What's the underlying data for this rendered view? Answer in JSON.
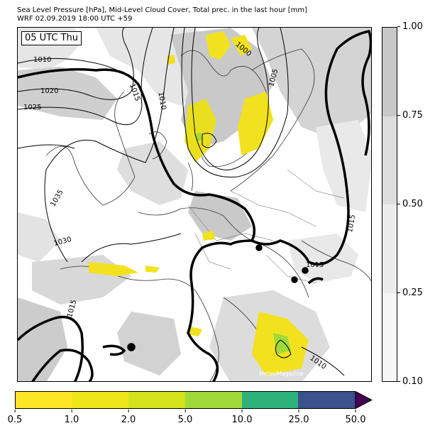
{
  "title": {
    "line1": "Sea Level Pressure [hPa], Mid-Level Cloud Cover, Total prec. in the last hour [mm]",
    "line2": "WRF 02.09.2019 18:00 UTC +59"
  },
  "time_label": "05 UTC Thu",
  "watermark": "MeteoMagazine",
  "isobar_labels": [
    "1010",
    "1020",
    "1025",
    "1035",
    "1030",
    "1015",
    "1010",
    "1000",
    "1005",
    "1015",
    "1015",
    "1015",
    "1010"
  ],
  "cloud_colorbar": {
    "ticks": [
      "1.00",
      "0.75",
      "0.50",
      "0.25",
      "0.10"
    ],
    "colors": [
      "#c8c8c8",
      "#dddddd",
      "#ececec",
      "#f7f7f7"
    ]
  },
  "precip_colorbar": {
    "ticks": [
      "0.5",
      "1.0",
      "2.0",
      "5.0",
      "10.0",
      "25.0",
      "50.0"
    ],
    "colors": [
      "#fde725",
      "#eee51a",
      "#d4e11d",
      "#9fda3a",
      "#2db37a",
      "#3b528b"
    ],
    "extend_color": "#440154"
  },
  "colors": {
    "precip_yellow": "#f2e11e",
    "precip_green": "#9fda3a",
    "cloud_gray": "#c9c9c9",
    "cloud_light": "#e6e6e6"
  }
}
